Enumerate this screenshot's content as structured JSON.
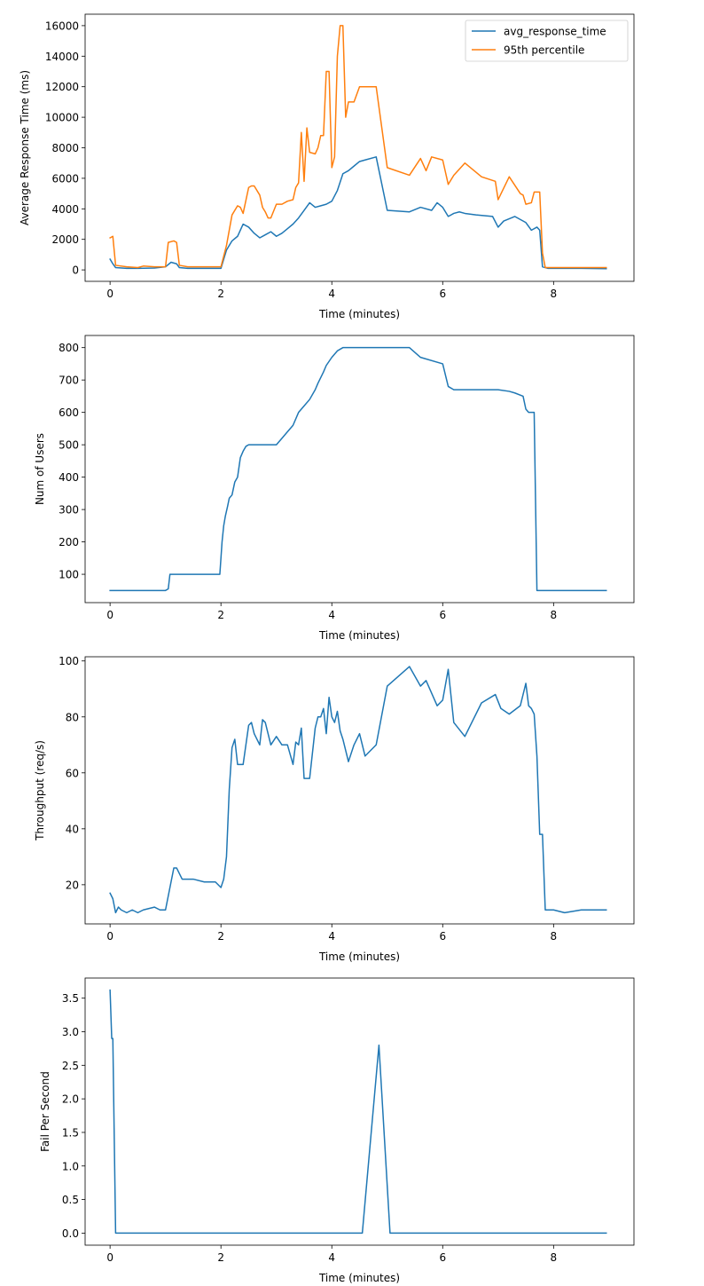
{
  "chart_data": [
    {
      "type": "line",
      "xlabel": "Time (minutes)",
      "ylabel": "Average Response Time (ms)",
      "xlim": [
        -0.45,
        9.45
      ],
      "ylim": [
        -750,
        16750
      ],
      "xticks": [
        0,
        2,
        4,
        6,
        8
      ],
      "xtick_labels": [
        "0",
        "2",
        "4",
        "6",
        "8"
      ],
      "yticks": [
        0,
        2000,
        4000,
        6000,
        8000,
        10000,
        12000,
        14000,
        16000
      ],
      "ytick_labels": [
        "0",
        "2000",
        "4000",
        "6000",
        "8000",
        "10000",
        "12000",
        "14000",
        "16000"
      ],
      "legend_position": "top-right",
      "series": [
        {
          "name": "avg_response_time",
          "color": "#1f77b4",
          "x": [
            0,
            0.05,
            0.1,
            0.3,
            0.5,
            0.8,
            1.0,
            1.1,
            1.2,
            1.25,
            1.4,
            1.7,
            2.0,
            2.1,
            2.2,
            2.3,
            2.4,
            2.5,
            2.6,
            2.7,
            2.8,
            2.9,
            3.0,
            3.1,
            3.2,
            3.3,
            3.4,
            3.5,
            3.6,
            3.7,
            3.8,
            3.9,
            4.0,
            4.1,
            4.2,
            4.3,
            4.4,
            4.5,
            4.6,
            4.8,
            5.0,
            5.4,
            5.6,
            5.8,
            5.9,
            6.0,
            6.1,
            6.2,
            6.3,
            6.4,
            6.6,
            6.9,
            7.0,
            7.1,
            7.3,
            7.5,
            7.6,
            7.7,
            7.75,
            7.8,
            7.9,
            8.5,
            8.95
          ],
          "y": [
            700,
            400,
            150,
            100,
            100,
            120,
            200,
            500,
            400,
            150,
            100,
            100,
            100,
            1300,
            1900,
            2200,
            3000,
            2800,
            2400,
            2100,
            2300,
            2500,
            2200,
            2400,
            2700,
            3000,
            3400,
            3900,
            4400,
            4100,
            4200,
            4300,
            4500,
            5200,
            6300,
            6500,
            6800,
            7100,
            7200,
            7400,
            3900,
            3800,
            4100,
            3900,
            4400,
            4100,
            3500,
            3700,
            3800,
            3700,
            3600,
            3500,
            2800,
            3200,
            3500,
            3100,
            2600,
            2800,
            2600,
            200,
            100,
            100,
            80
          ]
        },
        {
          "name": "95th percentile",
          "color": "#ff7f0e",
          "x": [
            0,
            0.05,
            0.1,
            0.3,
            0.5,
            0.6,
            0.8,
            1.0,
            1.05,
            1.15,
            1.2,
            1.25,
            1.4,
            1.7,
            2.0,
            2.1,
            2.2,
            2.3,
            2.35,
            2.4,
            2.5,
            2.55,
            2.6,
            2.7,
            2.75,
            2.8,
            2.85,
            2.9,
            3.0,
            3.1,
            3.2,
            3.3,
            3.35,
            3.4,
            3.45,
            3.5,
            3.55,
            3.6,
            3.7,
            3.75,
            3.8,
            3.85,
            3.9,
            3.95,
            4.0,
            4.05,
            4.1,
            4.15,
            4.2,
            4.25,
            4.3,
            4.4,
            4.5,
            4.6,
            4.7,
            4.8,
            5.0,
            5.4,
            5.6,
            5.7,
            5.8,
            6.0,
            6.1,
            6.2,
            6.4,
            6.7,
            6.95,
            7.0,
            7.2,
            7.4,
            7.45,
            7.5,
            7.6,
            7.65,
            7.75,
            7.8,
            7.85,
            8.5,
            8.95
          ],
          "y": [
            2100,
            2200,
            300,
            200,
            150,
            250,
            200,
            200,
            1800,
            1900,
            1800,
            300,
            200,
            200,
            200,
            1600,
            3600,
            4200,
            4100,
            3700,
            5400,
            5500,
            5500,
            4900,
            4100,
            3800,
            3400,
            3400,
            4300,
            4300,
            4500,
            4600,
            5400,
            5700,
            9000,
            5800,
            9300,
            7700,
            7600,
            8000,
            8800,
            8800,
            13000,
            13000,
            6700,
            7400,
            14000,
            16000,
            16000,
            10000,
            11000,
            11000,
            12000,
            12000,
            12000,
            12000,
            6700,
            6200,
            7300,
            6500,
            7400,
            7200,
            5600,
            6200,
            7000,
            6100,
            5800,
            4600,
            6100,
            5000,
            4900,
            4300,
            4400,
            5100,
            5100,
            1100,
            150,
            150,
            150
          ]
        }
      ],
      "legend": [
        "avg_response_time",
        "95th percentile"
      ]
    },
    {
      "type": "line",
      "xlabel": "Time (minutes)",
      "ylabel": "Num of Users",
      "xlim": [
        -0.45,
        9.45
      ],
      "ylim": [
        12.5,
        837.5
      ],
      "xticks": [
        0,
        2,
        4,
        6,
        8
      ],
      "xtick_labels": [
        "0",
        "2",
        "4",
        "6",
        "8"
      ],
      "yticks": [
        100,
        200,
        300,
        400,
        500,
        600,
        700,
        800
      ],
      "ytick_labels": [
        "100",
        "200",
        "300",
        "400",
        "500",
        "600",
        "700",
        "800"
      ],
      "series": [
        {
          "name": "users",
          "color": "#1f77b4",
          "x": [
            0,
            1.0,
            1.05,
            1.08,
            1.2,
            1.5,
            1.98,
            2.0,
            2.02,
            2.05,
            2.08,
            2.12,
            2.15,
            2.2,
            2.25,
            2.3,
            2.35,
            2.4,
            2.45,
            2.5,
            2.6,
            3.0,
            3.1,
            3.2,
            3.3,
            3.4,
            3.5,
            3.6,
            3.7,
            3.75,
            3.85,
            3.9,
            4.0,
            4.1,
            4.2,
            4.5,
            5.0,
            5.4,
            5.6,
            6.0,
            6.1,
            6.2,
            6.3,
            7.0,
            7.2,
            7.3,
            7.45,
            7.5,
            7.55,
            7.6,
            7.65,
            7.7,
            8.0,
            8.95
          ],
          "y": [
            50,
            50,
            55,
            100,
            100,
            100,
            100,
            150,
            200,
            250,
            280,
            310,
            335,
            345,
            385,
            400,
            460,
            480,
            495,
            500,
            500,
            500,
            520,
            540,
            560,
            600,
            620,
            640,
            670,
            690,
            725,
            745,
            770,
            790,
            800,
            800,
            800,
            800,
            770,
            750,
            680,
            670,
            670,
            670,
            665,
            660,
            650,
            610,
            600,
            600,
            600,
            50,
            50,
            50
          ]
        }
      ]
    },
    {
      "type": "line",
      "xlabel": "Time (minutes)",
      "ylabel": "Throughput (req/s)",
      "xlim": [
        -0.45,
        9.45
      ],
      "ylim": [
        6.0,
        101.5
      ],
      "xticks": [
        0,
        2,
        4,
        6,
        8
      ],
      "xtick_labels": [
        "0",
        "2",
        "4",
        "6",
        "8"
      ],
      "yticks": [
        20,
        40,
        60,
        80,
        100
      ],
      "ytick_labels": [
        "20",
        "40",
        "60",
        "80",
        "100"
      ],
      "series": [
        {
          "name": "throughput",
          "color": "#1f77b4",
          "x": [
            0,
            0.05,
            0.1,
            0.15,
            0.2,
            0.3,
            0.4,
            0.5,
            0.6,
            0.8,
            0.9,
            1.0,
            1.1,
            1.15,
            1.2,
            1.3,
            1.5,
            1.7,
            1.9,
            2.0,
            2.05,
            2.1,
            2.15,
            2.2,
            2.25,
            2.3,
            2.4,
            2.5,
            2.55,
            2.6,
            2.7,
            2.75,
            2.8,
            2.9,
            3.0,
            3.1,
            3.2,
            3.3,
            3.35,
            3.4,
            3.45,
            3.5,
            3.6,
            3.7,
            3.75,
            3.8,
            3.85,
            3.9,
            3.95,
            4.0,
            4.05,
            4.1,
            4.15,
            4.2,
            4.3,
            4.4,
            4.5,
            4.6,
            4.8,
            5.0,
            5.4,
            5.6,
            5.7,
            5.9,
            6.0,
            6.1,
            6.2,
            6.4,
            6.7,
            6.95,
            7.05,
            7.2,
            7.4,
            7.5,
            7.55,
            7.6,
            7.65,
            7.7,
            7.75,
            7.8,
            7.85,
            8.0,
            8.2,
            8.5,
            8.95
          ],
          "y": [
            17,
            15,
            10,
            12,
            11,
            10,
            11,
            10,
            11,
            12,
            11,
            11,
            21,
            26,
            26,
            22,
            22,
            21,
            21,
            19,
            22,
            30,
            54,
            69,
            72,
            63,
            63,
            77,
            78,
            74,
            70,
            79,
            78,
            70,
            73,
            70,
            70,
            63,
            71,
            70,
            76,
            58,
            58,
            76,
            80,
            80,
            83,
            74,
            87,
            80,
            78,
            82,
            75,
            72,
            64,
            70,
            74,
            66,
            70,
            91,
            98,
            91,
            93,
            84,
            86,
            97,
            78,
            73,
            85,
            88,
            83,
            81,
            84,
            92,
            84,
            83,
            81,
            66,
            38,
            38,
            11,
            11,
            10,
            11,
            11
          ]
        }
      ]
    },
    {
      "type": "line",
      "xlabel": "Time (minutes)",
      "ylabel": "Fail Per Second",
      "xlim": [
        -0.45,
        9.45
      ],
      "ylim": [
        -0.18,
        3.8
      ],
      "xticks": [
        0,
        2,
        4,
        6,
        8
      ],
      "xtick_labels": [
        "0",
        "2",
        "4",
        "6",
        "8"
      ],
      "yticks": [
        0.0,
        0.5,
        1.0,
        1.5,
        2.0,
        2.5,
        3.0,
        3.5
      ],
      "ytick_labels": [
        "0.0",
        "0.5",
        "1.0",
        "1.5",
        "2.0",
        "2.5",
        "3.0",
        "3.5"
      ],
      "series": [
        {
          "name": "fail_per_second",
          "color": "#1f77b4",
          "x": [
            0,
            0.03,
            0.05,
            0.1,
            0.5,
            1.0,
            2.0,
            3.0,
            4.0,
            4.55,
            4.85,
            5.05,
            6.0,
            7.0,
            8.0,
            8.95
          ],
          "y": [
            3.62,
            2.9,
            2.9,
            0,
            0,
            0,
            0,
            0,
            0,
            0,
            2.8,
            0,
            0,
            0,
            0,
            0
          ]
        }
      ]
    }
  ]
}
